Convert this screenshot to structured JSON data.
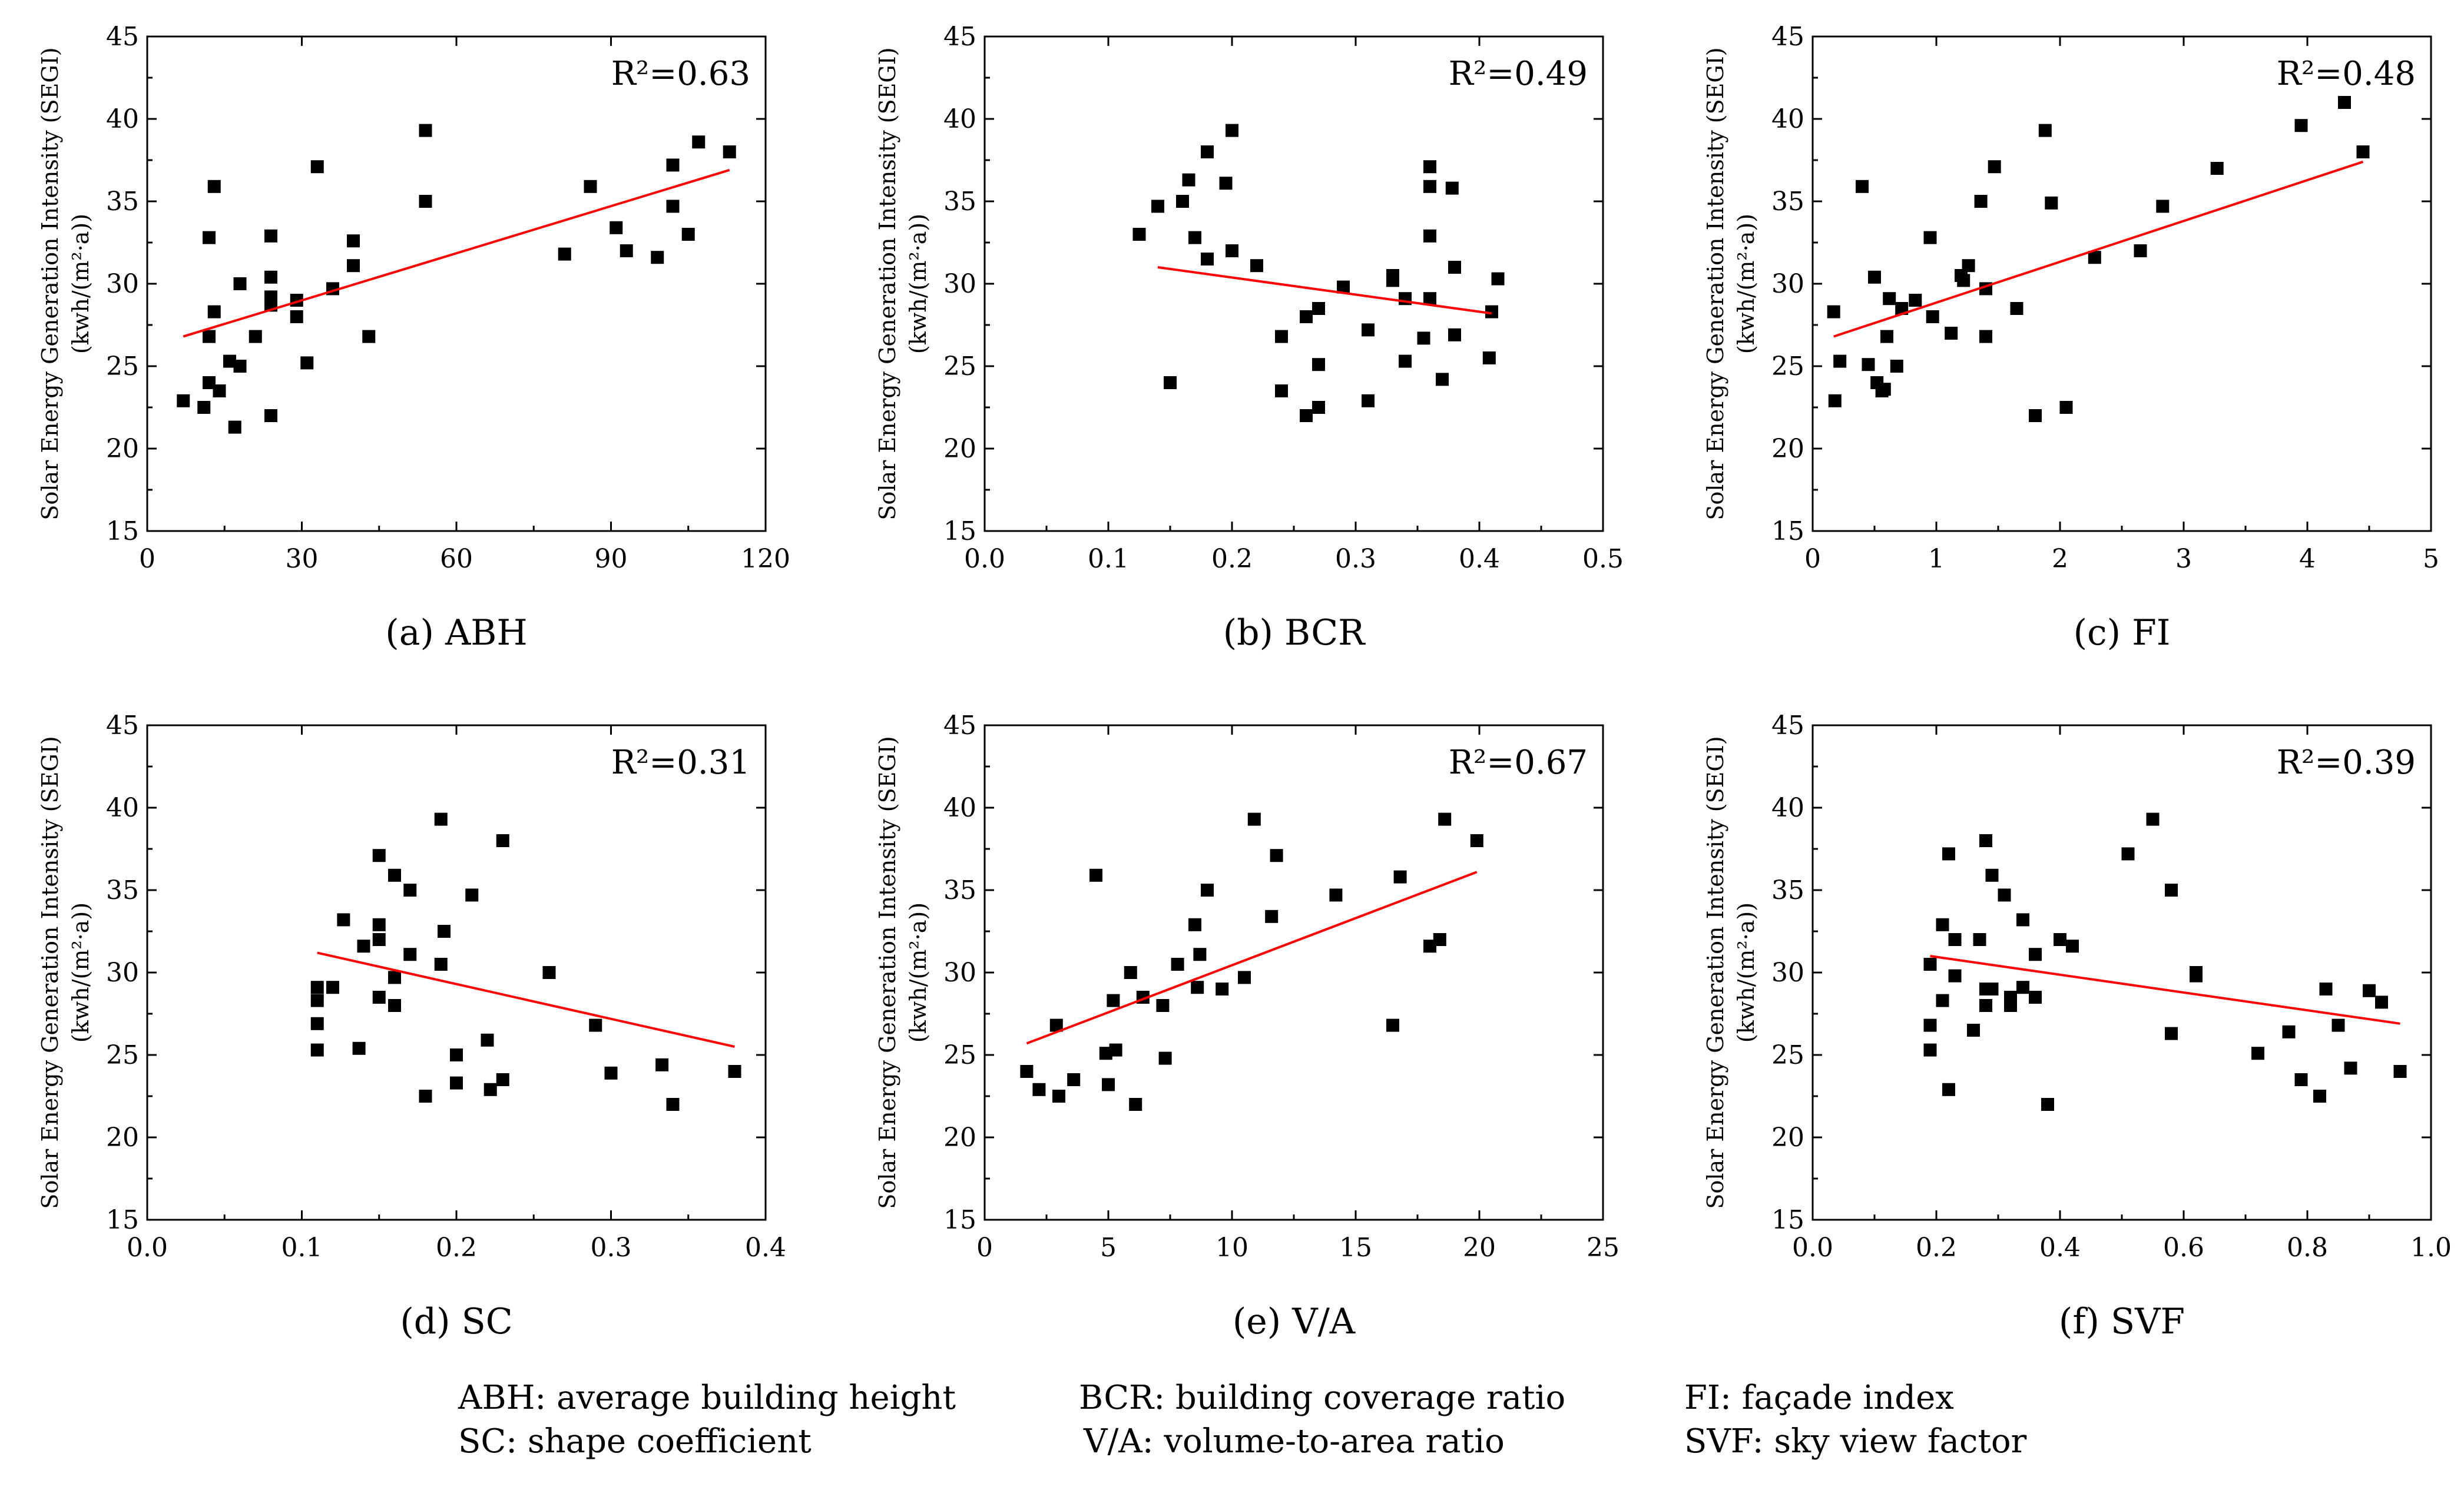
{
  "figure": {
    "legend": [
      {
        "abbr": "ABH",
        "text": "ABH: average building height"
      },
      {
        "abbr": "BCR",
        "text": "BCR: building coverage ratio"
      },
      {
        "abbr": "FI",
        "text": "FI: façade index"
      },
      {
        "abbr": "SC",
        "text": "SC: shape coefficient"
      },
      {
        "abbr": "V/A",
        "text": "V/A: volume-to-area ratio"
      },
      {
        "abbr": "SVF",
        "text": "SVF:  sky view factor"
      }
    ]
  },
  "chart_data": [
    {
      "id": "a",
      "type": "scatter",
      "caption": "(a) ABH",
      "ylabel_line1": "Solar Energy Generation Intensity (SEGI)",
      "ylabel_line2": "(kwh/(m²·a))",
      "r2_label": "R²=0.63",
      "xlim": [
        0,
        120
      ],
      "ylim": [
        15,
        45
      ],
      "xticks": [
        0,
        30,
        60,
        90,
        120
      ],
      "xtick_labels": [
        "0",
        "30",
        "60",
        "90",
        "120"
      ],
      "yticks": [
        15,
        20,
        25,
        30,
        35,
        40,
        45
      ],
      "ytick_labels": [
        "15",
        "20",
        "25",
        "30",
        "35",
        "40",
        "45"
      ],
      "x": [
        7,
        11,
        12,
        12,
        13,
        13,
        14,
        16,
        18,
        18,
        21,
        24,
        24,
        24,
        24,
        24,
        29,
        29,
        31,
        33,
        36,
        40,
        40,
        43,
        54,
        54,
        81,
        86,
        91,
        93,
        99,
        102,
        102,
        105,
        107,
        113,
        12,
        17
      ],
      "y": [
        22.9,
        22.5,
        32.8,
        24.0,
        35.9,
        28.3,
        23.5,
        25.3,
        30.0,
        25.0,
        26.8,
        22.0,
        32.9,
        30.4,
        29.2,
        28.7,
        29.0,
        28.0,
        25.2,
        37.1,
        29.7,
        32.6,
        31.1,
        26.8,
        39.3,
        35.0,
        31.8,
        35.9,
        33.4,
        32.0,
        31.6,
        37.2,
        34.7,
        33.0,
        38.6,
        38.0,
        26.8,
        21.3
      ],
      "fit": {
        "x": [
          7,
          113
        ],
        "y": [
          26.8,
          36.9
        ]
      }
    },
    {
      "id": "b",
      "type": "scatter",
      "caption": "(b) BCR",
      "ylabel_line1": "Solar Energy Generation Intensity (SEGI)",
      "ylabel_line2": "(kwh/(m²·a))",
      "r2_label": "R²=0.49",
      "xlim": [
        0.0,
        0.5
      ],
      "ylim": [
        15,
        45
      ],
      "xticks": [
        0.0,
        0.1,
        0.2,
        0.3,
        0.4,
        0.5
      ],
      "xtick_labels": [
        "0.0",
        "0.1",
        "0.2",
        "0.3",
        "0.4",
        "0.5"
      ],
      "yticks": [
        15,
        20,
        25,
        30,
        35,
        40,
        45
      ],
      "ytick_labels": [
        "15",
        "20",
        "25",
        "30",
        "35",
        "40",
        "45"
      ],
      "x": [
        0.125,
        0.14,
        0.15,
        0.16,
        0.165,
        0.17,
        0.18,
        0.18,
        0.195,
        0.2,
        0.2,
        0.22,
        0.24,
        0.24,
        0.26,
        0.26,
        0.27,
        0.27,
        0.27,
        0.29,
        0.31,
        0.31,
        0.33,
        0.33,
        0.34,
        0.34,
        0.355,
        0.36,
        0.36,
        0.36,
        0.36,
        0.37,
        0.378,
        0.38,
        0.38,
        0.408,
        0.41,
        0.415
      ],
      "y": [
        33.0,
        34.7,
        24.0,
        35.0,
        36.3,
        32.8,
        31.5,
        38.0,
        36.1,
        39.3,
        32.0,
        31.1,
        26.8,
        23.5,
        28.0,
        22.0,
        28.5,
        25.1,
        22.5,
        29.8,
        27.2,
        22.9,
        30.5,
        30.2,
        29.1,
        25.3,
        26.7,
        37.1,
        35.9,
        32.9,
        29.1,
        24.2,
        35.8,
        31.0,
        26.9,
        25.5,
        28.3,
        30.3
      ],
      "fit": {
        "x": [
          0.14,
          0.41
        ],
        "y": [
          31.0,
          28.2
        ]
      }
    },
    {
      "id": "c",
      "type": "scatter",
      "caption": "(c) FI",
      "ylabel_line1": "Solar Energy Generation Intensity (SEGI)",
      "ylabel_line2": "(kwh/(m²·a))",
      "r2_label": "R²=0.48",
      "xlim": [
        0,
        5
      ],
      "ylim": [
        15,
        45
      ],
      "xticks": [
        0,
        1,
        2,
        3,
        4,
        5
      ],
      "xtick_labels": [
        "0",
        "1",
        "2",
        "3",
        "4",
        "5"
      ],
      "yticks": [
        15,
        20,
        25,
        30,
        35,
        40,
        45
      ],
      "ytick_labels": [
        "15",
        "20",
        "25",
        "30",
        "35",
        "40",
        "45"
      ],
      "x": [
        0.17,
        0.18,
        0.22,
        0.4,
        0.45,
        0.5,
        0.52,
        0.56,
        0.6,
        0.62,
        0.68,
        0.72,
        0.83,
        0.95,
        0.97,
        1.12,
        1.2,
        1.22,
        1.26,
        1.36,
        1.4,
        1.4,
        1.47,
        1.65,
        1.8,
        1.88,
        1.93,
        2.05,
        2.28,
        2.65,
        2.83,
        3.27,
        3.95,
        4.3,
        4.45,
        0.58
      ],
      "y": [
        28.3,
        22.9,
        25.3,
        35.9,
        25.1,
        30.4,
        24.0,
        23.5,
        26.8,
        29.1,
        25.0,
        28.5,
        29.0,
        32.8,
        28.0,
        27.0,
        30.5,
        30.2,
        31.1,
        35.0,
        29.7,
        26.8,
        37.1,
        28.5,
        22.0,
        39.3,
        34.9,
        22.5,
        31.6,
        32.0,
        34.7,
        37.0,
        39.6,
        41.0,
        38.0,
        23.6
      ],
      "fit": {
        "x": [
          0.17,
          4.45
        ],
        "y": [
          26.8,
          37.4
        ]
      }
    },
    {
      "id": "d",
      "type": "scatter",
      "caption": "(d) SC",
      "ylabel_line1": "Solar Energy Generation Intensity (SEGI)",
      "ylabel_line2": "(kwh/(m²·a))",
      "r2_label": "R²=0.31",
      "xlim": [
        0.0,
        0.4
      ],
      "ylim": [
        15,
        45
      ],
      "xticks": [
        0.0,
        0.1,
        0.2,
        0.3,
        0.4
      ],
      "xtick_labels": [
        "0.0",
        "0.1",
        "0.2",
        "0.3",
        "0.4"
      ],
      "yticks": [
        15,
        20,
        25,
        30,
        35,
        40,
        45
      ],
      "ytick_labels": [
        "15",
        "20",
        "25",
        "30",
        "35",
        "40",
        "45"
      ],
      "x": [
        0.11,
        0.11,
        0.11,
        0.11,
        0.12,
        0.127,
        0.137,
        0.14,
        0.15,
        0.15,
        0.15,
        0.15,
        0.16,
        0.16,
        0.16,
        0.17,
        0.17,
        0.18,
        0.19,
        0.19,
        0.192,
        0.2,
        0.2,
        0.21,
        0.22,
        0.222,
        0.23,
        0.23,
        0.26,
        0.29,
        0.3,
        0.333,
        0.34,
        0.38
      ],
      "y": [
        29.1,
        28.3,
        26.9,
        25.3,
        29.1,
        33.2,
        25.4,
        31.6,
        37.1,
        32.9,
        32.0,
        28.5,
        35.9,
        29.7,
        28.0,
        35.0,
        31.1,
        22.5,
        39.3,
        30.5,
        32.5,
        25.0,
        23.3,
        34.7,
        25.9,
        22.9,
        23.5,
        38.0,
        30.0,
        26.8,
        23.9,
        24.4,
        22.0,
        24.0
      ],
      "fit": {
        "x": [
          0.11,
          0.38
        ],
        "y": [
          31.2,
          25.5
        ]
      }
    },
    {
      "id": "e",
      "type": "scatter",
      "caption": "(e) V/A",
      "ylabel_line1": "Solar Energy Generation Intensity (SEGI)",
      "ylabel_line2": "(kwh/(m²·a))",
      "r2_label": "R²=0.67",
      "xlim": [
        0,
        25
      ],
      "ylim": [
        15,
        45
      ],
      "xticks": [
        0,
        5,
        10,
        15,
        20,
        25
      ],
      "xtick_labels": [
        "0",
        "5",
        "10",
        "15",
        "20",
        "25"
      ],
      "yticks": [
        15,
        20,
        25,
        30,
        35,
        40,
        45
      ],
      "ytick_labels": [
        "15",
        "20",
        "25",
        "30",
        "35",
        "40",
        "45"
      ],
      "x": [
        1.7,
        2.2,
        2.9,
        3.0,
        3.6,
        4.5,
        4.9,
        5.0,
        5.2,
        5.3,
        5.9,
        6.1,
        6.4,
        7.2,
        7.3,
        7.8,
        8.5,
        8.6,
        8.7,
        9.0,
        9.6,
        10.5,
        10.9,
        11.6,
        11.8,
        14.2,
        16.5,
        16.8,
        18.0,
        18.4,
        18.6,
        19.9
      ],
      "y": [
        24.0,
        22.9,
        26.8,
        22.5,
        23.5,
        35.9,
        25.1,
        23.2,
        28.3,
        25.3,
        30.0,
        22.0,
        28.5,
        28.0,
        24.8,
        30.5,
        32.9,
        29.1,
        31.1,
        35.0,
        29.0,
        29.7,
        39.3,
        33.4,
        37.1,
        34.7,
        26.8,
        35.8,
        31.6,
        32.0,
        39.3,
        38.0
      ],
      "fit": {
        "x": [
          1.7,
          19.9
        ],
        "y": [
          25.7,
          36.1
        ]
      }
    },
    {
      "id": "f",
      "type": "scatter",
      "caption": "(f) SVF",
      "ylabel_line1": "Solar Energy Generation Intensity (SEGI)",
      "ylabel_line2": "(kwh/(m²·a))",
      "r2_label": "R²=0.39",
      "xlim": [
        0.0,
        1.0
      ],
      "ylim": [
        15,
        45
      ],
      "xticks": [
        0.0,
        0.2,
        0.4,
        0.6,
        0.8,
        1.0
      ],
      "xtick_labels": [
        "0.0",
        "0.2",
        "0.4",
        "0.6",
        "0.8",
        "1.0"
      ],
      "yticks": [
        15,
        20,
        25,
        30,
        35,
        40,
        45
      ],
      "ytick_labels": [
        "15",
        "20",
        "25",
        "30",
        "35",
        "40",
        "45"
      ],
      "x": [
        0.19,
        0.19,
        0.19,
        0.21,
        0.21,
        0.22,
        0.22,
        0.23,
        0.23,
        0.26,
        0.27,
        0.28,
        0.28,
        0.28,
        0.29,
        0.29,
        0.31,
        0.32,
        0.32,
        0.34,
        0.34,
        0.36,
        0.36,
        0.38,
        0.4,
        0.42,
        0.51,
        0.55,
        0.58,
        0.58,
        0.62,
        0.62,
        0.72,
        0.77,
        0.79,
        0.82,
        0.83,
        0.85,
        0.87,
        0.9,
        0.92,
        0.95
      ],
      "y": [
        30.5,
        26.8,
        25.3,
        32.9,
        28.3,
        37.2,
        22.9,
        32.0,
        29.8,
        26.5,
        32.0,
        38.0,
        29.0,
        28.0,
        35.9,
        29.0,
        34.7,
        28.0,
        28.5,
        33.2,
        29.1,
        31.1,
        28.5,
        22.0,
        32.0,
        31.6,
        37.2,
        39.3,
        35.0,
        26.3,
        30.0,
        29.8,
        25.1,
        26.4,
        23.5,
        22.5,
        29.0,
        26.8,
        24.2,
        28.9,
        28.2,
        24.0
      ],
      "fit": {
        "x": [
          0.19,
          0.95
        ],
        "y": [
          31.0,
          26.9
        ]
      }
    }
  ]
}
